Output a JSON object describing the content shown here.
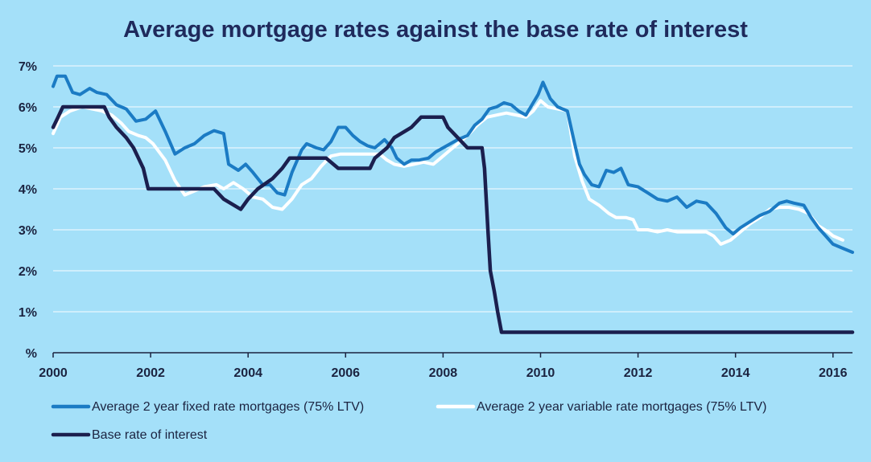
{
  "colors": {
    "background": "#a4e0f9",
    "title": "#1f2a5c",
    "grid": "#ffffff",
    "fixed": "#1b7bc4",
    "variable": "#ffffff",
    "base": "#1b1f4e"
  },
  "chart_data": {
    "type": "line",
    "title": "Average mortgage rates against the base rate of interest",
    "xlabel": "",
    "ylabel": "",
    "xlim": [
      2000,
      2016.4
    ],
    "ylim": [
      0,
      7
    ],
    "grid": true,
    "legend_position": "bottom",
    "x_ticks": [
      "2000",
      "2002",
      "2004",
      "2006",
      "2008",
      "2010",
      "2012",
      "2014",
      "2016"
    ],
    "y_ticks": [
      "%",
      "1%",
      "2%",
      "3%",
      "4%",
      "5%",
      "6%",
      "7%"
    ],
    "series": [
      {
        "name": "Average 2 year fixed rate mortgages (75% LTV)",
        "color": "#1b7bc4",
        "points": [
          [
            2000.0,
            6.5
          ],
          [
            2000.08,
            6.75
          ],
          [
            2000.25,
            6.75
          ],
          [
            2000.4,
            6.35
          ],
          [
            2000.55,
            6.3
          ],
          [
            2000.75,
            6.45
          ],
          [
            2000.9,
            6.35
          ],
          [
            2001.1,
            6.3
          ],
          [
            2001.3,
            6.05
          ],
          [
            2001.5,
            5.95
          ],
          [
            2001.7,
            5.65
          ],
          [
            2001.9,
            5.7
          ],
          [
            2002.1,
            5.9
          ],
          [
            2002.3,
            5.4
          ],
          [
            2002.5,
            4.85
          ],
          [
            2002.7,
            5.0
          ],
          [
            2002.9,
            5.1
          ],
          [
            2003.1,
            5.3
          ],
          [
            2003.3,
            5.42
          ],
          [
            2003.5,
            5.35
          ],
          [
            2003.6,
            4.6
          ],
          [
            2003.8,
            4.45
          ],
          [
            2003.95,
            4.6
          ],
          [
            2004.1,
            4.4
          ],
          [
            2004.3,
            4.1
          ],
          [
            2004.45,
            4.1
          ],
          [
            2004.6,
            3.9
          ],
          [
            2004.75,
            3.85
          ],
          [
            2004.9,
            4.4
          ],
          [
            2005.1,
            4.95
          ],
          [
            2005.2,
            5.1
          ],
          [
            2005.4,
            5.0
          ],
          [
            2005.55,
            4.95
          ],
          [
            2005.7,
            5.15
          ],
          [
            2005.85,
            5.5
          ],
          [
            2006.0,
            5.5
          ],
          [
            2006.15,
            5.3
          ],
          [
            2006.3,
            5.15
          ],
          [
            2006.45,
            5.05
          ],
          [
            2006.6,
            5.0
          ],
          [
            2006.8,
            5.2
          ],
          [
            2006.95,
            5.0
          ],
          [
            2007.05,
            4.75
          ],
          [
            2007.2,
            4.6
          ],
          [
            2007.35,
            4.7
          ],
          [
            2007.5,
            4.7
          ],
          [
            2007.7,
            4.75
          ],
          [
            2007.85,
            4.9
          ],
          [
            2008.0,
            5.0
          ],
          [
            2008.15,
            5.1
          ],
          [
            2008.3,
            5.2
          ],
          [
            2008.5,
            5.3
          ],
          [
            2008.65,
            5.55
          ],
          [
            2008.8,
            5.7
          ],
          [
            2008.95,
            5.95
          ],
          [
            2009.1,
            6.0
          ],
          [
            2009.25,
            6.1
          ],
          [
            2009.4,
            6.05
          ],
          [
            2009.55,
            5.9
          ],
          [
            2009.7,
            5.8
          ],
          [
            2009.85,
            6.1
          ],
          [
            2009.95,
            6.3
          ],
          [
            2010.05,
            6.6
          ],
          [
            2010.2,
            6.2
          ],
          [
            2010.35,
            6.0
          ],
          [
            2010.55,
            5.9
          ],
          [
            2010.7,
            5.1
          ],
          [
            2010.8,
            4.6
          ],
          [
            2010.9,
            4.35
          ],
          [
            2011.05,
            4.1
          ],
          [
            2011.2,
            4.05
          ],
          [
            2011.35,
            4.45
          ],
          [
            2011.5,
            4.4
          ],
          [
            2011.65,
            4.5
          ],
          [
            2011.8,
            4.1
          ],
          [
            2012.0,
            4.05
          ],
          [
            2012.2,
            3.9
          ],
          [
            2012.4,
            3.75
          ],
          [
            2012.6,
            3.7
          ],
          [
            2012.8,
            3.8
          ],
          [
            2013.0,
            3.55
          ],
          [
            2013.2,
            3.7
          ],
          [
            2013.4,
            3.65
          ],
          [
            2013.6,
            3.4
          ],
          [
            2013.8,
            3.05
          ],
          [
            2013.95,
            2.9
          ],
          [
            2014.1,
            3.05
          ],
          [
            2014.3,
            3.2
          ],
          [
            2014.5,
            3.35
          ],
          [
            2014.7,
            3.45
          ],
          [
            2014.9,
            3.65
          ],
          [
            2015.05,
            3.7
          ],
          [
            2015.2,
            3.65
          ],
          [
            2015.4,
            3.6
          ],
          [
            2015.55,
            3.3
          ],
          [
            2015.7,
            3.05
          ],
          [
            2015.85,
            2.85
          ],
          [
            2016.0,
            2.65
          ],
          [
            2016.2,
            2.55
          ],
          [
            2016.4,
            2.45
          ]
        ]
      },
      {
        "name": "Average 2 year variable rate mortgages (75% LTV)",
        "color": "#ffffff",
        "points": [
          [
            2000.0,
            5.35
          ],
          [
            2000.15,
            5.75
          ],
          [
            2000.35,
            5.9
          ],
          [
            2000.6,
            6.0
          ],
          [
            2000.8,
            5.95
          ],
          [
            2001.0,
            5.9
          ],
          [
            2001.2,
            5.8
          ],
          [
            2001.4,
            5.6
          ],
          [
            2001.55,
            5.4
          ],
          [
            2001.75,
            5.3
          ],
          [
            2001.9,
            5.25
          ],
          [
            2002.05,
            5.1
          ],
          [
            2002.3,
            4.7
          ],
          [
            2002.5,
            4.2
          ],
          [
            2002.7,
            3.85
          ],
          [
            2002.9,
            3.95
          ],
          [
            2003.1,
            4.05
          ],
          [
            2003.35,
            4.1
          ],
          [
            2003.5,
            4.0
          ],
          [
            2003.7,
            4.15
          ],
          [
            2003.9,
            4.0
          ],
          [
            2004.1,
            3.8
          ],
          [
            2004.3,
            3.75
          ],
          [
            2004.5,
            3.55
          ],
          [
            2004.7,
            3.5
          ],
          [
            2004.9,
            3.75
          ],
          [
            2005.1,
            4.1
          ],
          [
            2005.3,
            4.25
          ],
          [
            2005.5,
            4.55
          ],
          [
            2005.7,
            4.8
          ],
          [
            2005.9,
            4.85
          ],
          [
            2006.1,
            4.85
          ],
          [
            2006.3,
            4.85
          ],
          [
            2006.5,
            4.85
          ],
          [
            2006.7,
            4.85
          ],
          [
            2006.85,
            4.7
          ],
          [
            2007.0,
            4.6
          ],
          [
            2007.2,
            4.55
          ],
          [
            2007.4,
            4.6
          ],
          [
            2007.6,
            4.65
          ],
          [
            2007.8,
            4.6
          ],
          [
            2007.95,
            4.75
          ],
          [
            2008.1,
            4.9
          ],
          [
            2008.3,
            5.1
          ],
          [
            2008.5,
            5.3
          ],
          [
            2008.7,
            5.55
          ],
          [
            2008.9,
            5.75
          ],
          [
            2009.1,
            5.8
          ],
          [
            2009.3,
            5.85
          ],
          [
            2009.5,
            5.8
          ],
          [
            2009.7,
            5.75
          ],
          [
            2009.85,
            5.9
          ],
          [
            2010.0,
            6.15
          ],
          [
            2010.15,
            6.0
          ],
          [
            2010.35,
            5.95
          ],
          [
            2010.55,
            5.9
          ],
          [
            2010.7,
            4.8
          ],
          [
            2010.85,
            4.2
          ],
          [
            2011.0,
            3.75
          ],
          [
            2011.2,
            3.6
          ],
          [
            2011.4,
            3.4
          ],
          [
            2011.55,
            3.3
          ],
          [
            2011.75,
            3.3
          ],
          [
            2011.9,
            3.25
          ],
          [
            2012.0,
            3.0
          ],
          [
            2012.2,
            3.0
          ],
          [
            2012.4,
            2.95
          ],
          [
            2012.6,
            3.0
          ],
          [
            2012.8,
            2.95
          ],
          [
            2013.0,
            2.95
          ],
          [
            2013.2,
            2.95
          ],
          [
            2013.4,
            2.95
          ],
          [
            2013.55,
            2.85
          ],
          [
            2013.7,
            2.65
          ],
          [
            2013.9,
            2.75
          ],
          [
            2014.1,
            2.95
          ],
          [
            2014.3,
            3.15
          ],
          [
            2014.5,
            3.3
          ],
          [
            2014.7,
            3.5
          ],
          [
            2014.9,
            3.55
          ],
          [
            2015.1,
            3.55
          ],
          [
            2015.3,
            3.5
          ],
          [
            2015.5,
            3.4
          ],
          [
            2015.7,
            3.1
          ],
          [
            2015.9,
            2.95
          ],
          [
            2016.0,
            2.85
          ],
          [
            2016.2,
            2.75
          ]
        ]
      },
      {
        "name": "Base rate of interest",
        "color": "#1b1f4e",
        "points": [
          [
            2000.0,
            5.5
          ],
          [
            2000.1,
            5.75
          ],
          [
            2000.2,
            6.0
          ],
          [
            2001.05,
            6.0
          ],
          [
            2001.15,
            5.75
          ],
          [
            2001.3,
            5.5
          ],
          [
            2001.5,
            5.25
          ],
          [
            2001.65,
            5.0
          ],
          [
            2001.75,
            4.75
          ],
          [
            2001.85,
            4.5
          ],
          [
            2001.95,
            4.0
          ],
          [
            2002.5,
            4.0
          ],
          [
            2003.3,
            4.0
          ],
          [
            2003.5,
            3.75
          ],
          [
            2003.85,
            3.5
          ],
          [
            2004.0,
            3.75
          ],
          [
            2004.2,
            4.0
          ],
          [
            2004.5,
            4.25
          ],
          [
            2004.7,
            4.5
          ],
          [
            2004.85,
            4.75
          ],
          [
            2005.6,
            4.75
          ],
          [
            2005.85,
            4.5
          ],
          [
            2006.5,
            4.5
          ],
          [
            2006.6,
            4.75
          ],
          [
            2006.85,
            5.0
          ],
          [
            2007.0,
            5.25
          ],
          [
            2007.35,
            5.5
          ],
          [
            2007.55,
            5.75
          ],
          [
            2008.0,
            5.75
          ],
          [
            2008.1,
            5.5
          ],
          [
            2008.3,
            5.25
          ],
          [
            2008.5,
            5.0
          ],
          [
            2008.8,
            5.0
          ],
          [
            2008.85,
            4.5
          ],
          [
            2008.92,
            3.0
          ],
          [
            2008.97,
            2.0
          ],
          [
            2009.05,
            1.5
          ],
          [
            2009.12,
            1.0
          ],
          [
            2009.2,
            0.5
          ],
          [
            2016.4,
            0.5
          ]
        ]
      }
    ]
  }
}
